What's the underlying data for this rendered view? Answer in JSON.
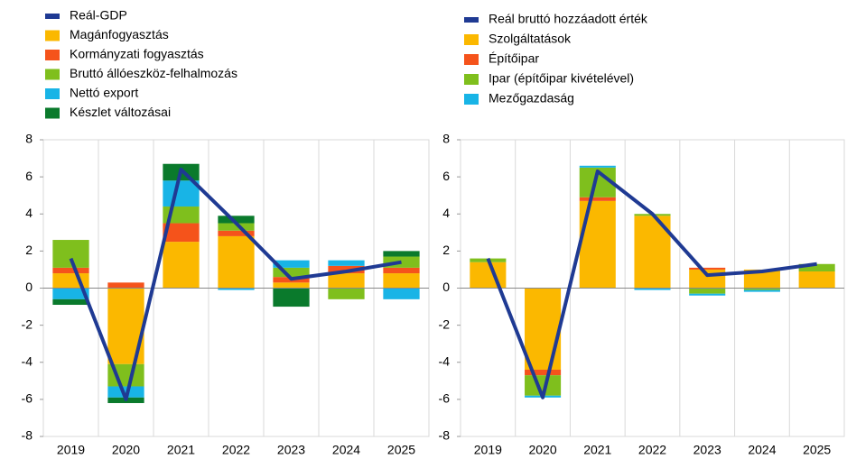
{
  "chart_data": [
    {
      "type": "bar",
      "stacked": true,
      "categories": [
        "2019",
        "2020",
        "2021",
        "2022",
        "2023",
        "2024",
        "2025"
      ],
      "series": [
        {
          "name": "Magánfogyasztás",
          "color": "#fbb800",
          "values": [
            0.8,
            -4.1,
            2.5,
            2.8,
            0.3,
            0.8,
            0.8
          ]
        },
        {
          "name": "Kormányzati fogyasztás",
          "color": "#f5531b",
          "values": [
            0.3,
            0.3,
            1.0,
            0.3,
            0.3,
            0.4,
            0.3
          ]
        },
        {
          "name": "Bruttó állóeszköz-felhalmozás",
          "color": "#7fbf1d",
          "values": [
            1.5,
            -1.2,
            0.9,
            0.4,
            0.5,
            -0.6,
            0.6
          ]
        },
        {
          "name": "Nettó export",
          "color": "#18b4e6",
          "values": [
            -0.6,
            -0.6,
            1.4,
            -0.1,
            0.4,
            0.3,
            -0.6
          ]
        },
        {
          "name": "Készlet változásai",
          "color": "#0a7a2c",
          "values": [
            -0.3,
            -0.3,
            0.9,
            0.4,
            -1.0,
            0,
            0.3
          ]
        }
      ],
      "line": {
        "name": "Reál-GDP",
        "color": "#1f3a93",
        "values": [
          1.6,
          -6.0,
          6.4,
          3.5,
          0.5,
          0.9,
          1.4
        ]
      },
      "ylim": [
        -8,
        8
      ],
      "yticks": [
        -8,
        -6,
        -4,
        -2,
        0,
        2,
        4,
        6,
        8
      ]
    },
    {
      "type": "bar",
      "stacked": true,
      "categories": [
        "2019",
        "2020",
        "2021",
        "2022",
        "2023",
        "2024",
        "2025"
      ],
      "series": [
        {
          "name": "Szolgáltatások",
          "color": "#fbb800",
          "values": [
            1.4,
            -4.4,
            4.7,
            3.9,
            1.0,
            1.0,
            0.9
          ]
        },
        {
          "name": "Építőipar",
          "color": "#f5531b",
          "values": [
            0,
            -0.3,
            0.2,
            0,
            0.1,
            0,
            0
          ]
        },
        {
          "name": "Ipar (építőipar kivételével)",
          "color": "#7fbf1d",
          "values": [
            0.2,
            -1.1,
            1.6,
            0.1,
            -0.3,
            -0.1,
            0.4
          ]
        },
        {
          "name": "Mezőgazdaság",
          "color": "#18b4e6",
          "values": [
            0,
            -0.1,
            0.1,
            -0.1,
            -0.1,
            -0.1,
            0
          ]
        }
      ],
      "line": {
        "name": "Reál bruttó hozzáadott érték",
        "color": "#1f3a93",
        "values": [
          1.6,
          -5.9,
          6.3,
          4.0,
          0.7,
          0.9,
          1.3
        ]
      },
      "ylim": [
        -8,
        8
      ],
      "yticks": [
        -8,
        -6,
        -4,
        -2,
        0,
        2,
        4,
        6,
        8
      ]
    }
  ]
}
